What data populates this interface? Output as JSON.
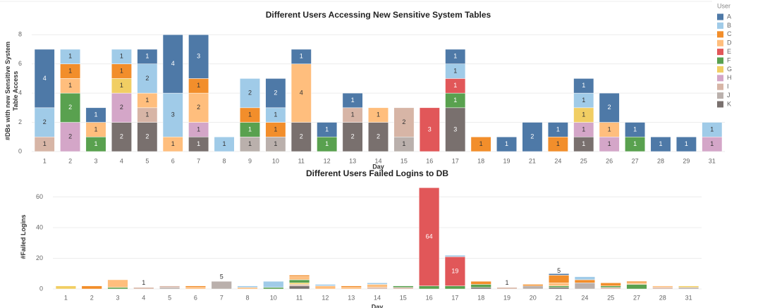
{
  "chart_data": [
    {
      "type": "stacked_bar",
      "title": "Different Users Accessing New Sensitive System Tables",
      "y_label": "#DBs with new Sensitive System Table Access",
      "x_label": "Day",
      "legend_title": "User",
      "legend": "right",
      "grid": true,
      "categories": [
        "1",
        "2",
        "3",
        "4",
        "5",
        "6",
        "7",
        "8",
        "9",
        "10",
        "11",
        "12",
        "13",
        "14",
        "15",
        "16",
        "17",
        "18",
        "19",
        "21",
        "24",
        "25",
        "26",
        "27",
        "28",
        "29",
        "31"
      ],
      "ylim": [
        0,
        8.3
      ],
      "yticks": [
        0,
        2,
        4,
        6,
        8
      ],
      "series": [
        {
          "name": "K",
          "color": "#79706e",
          "values": [
            null,
            null,
            null,
            2,
            2,
            null,
            1,
            null,
            null,
            null,
            2,
            null,
            2,
            2,
            null,
            null,
            3,
            null,
            null,
            null,
            null,
            1,
            null,
            null,
            null,
            null,
            null
          ]
        },
        {
          "name": "J",
          "color": "#bab0ac",
          "values": [
            null,
            null,
            null,
            null,
            null,
            null,
            null,
            null,
            1,
            1,
            null,
            null,
            null,
            null,
            1,
            null,
            null,
            null,
            null,
            null,
            null,
            null,
            null,
            null,
            null,
            null,
            null
          ]
        },
        {
          "name": "I",
          "color": "#d7b5a6",
          "values": [
            1,
            null,
            null,
            null,
            1,
            null,
            null,
            null,
            null,
            null,
            null,
            null,
            1,
            null,
            2,
            null,
            null,
            null,
            null,
            null,
            null,
            null,
            null,
            null,
            null,
            null,
            null
          ]
        },
        {
          "name": "H",
          "color": "#d4a6c8",
          "values": [
            null,
            2,
            null,
            2,
            null,
            null,
            1,
            null,
            null,
            null,
            null,
            null,
            null,
            null,
            null,
            null,
            null,
            null,
            null,
            null,
            null,
            1,
            1,
            null,
            null,
            null,
            1
          ]
        },
        {
          "name": "G",
          "color": "#f1ce63",
          "values": [
            null,
            null,
            null,
            1,
            null,
            null,
            null,
            null,
            null,
            null,
            null,
            null,
            null,
            null,
            null,
            null,
            null,
            null,
            null,
            null,
            null,
            1,
            null,
            null,
            null,
            null,
            null
          ]
        },
        {
          "name": "F",
          "color": "#59a14f",
          "values": [
            null,
            2,
            1,
            null,
            null,
            null,
            null,
            null,
            1,
            null,
            null,
            1,
            null,
            null,
            null,
            null,
            1,
            null,
            null,
            null,
            null,
            null,
            null,
            1,
            null,
            null,
            null
          ]
        },
        {
          "name": "E",
          "color": "#e15759",
          "values": [
            null,
            null,
            null,
            null,
            null,
            null,
            null,
            null,
            null,
            null,
            null,
            null,
            null,
            null,
            null,
            3,
            1,
            null,
            null,
            null,
            null,
            null,
            null,
            null,
            null,
            null,
            null
          ]
        },
        {
          "name": "D",
          "color": "#ffbe7d",
          "values": [
            null,
            1,
            1,
            null,
            1,
            1,
            2,
            null,
            null,
            null,
            4,
            null,
            null,
            1,
            null,
            null,
            null,
            null,
            null,
            null,
            null,
            null,
            1,
            null,
            null,
            null,
            null
          ]
        },
        {
          "name": "C",
          "color": "#f28e2b",
          "values": [
            null,
            1,
            null,
            1,
            null,
            null,
            1,
            null,
            1,
            1,
            null,
            null,
            null,
            null,
            null,
            null,
            null,
            1,
            null,
            null,
            1,
            null,
            null,
            null,
            null,
            null,
            null
          ]
        },
        {
          "name": "B",
          "color": "#a0cbe8",
          "values": [
            2,
            1,
            null,
            1,
            2,
            3,
            null,
            1,
            2,
            1,
            null,
            null,
            null,
            null,
            null,
            null,
            1,
            null,
            null,
            null,
            null,
            1,
            null,
            null,
            null,
            null,
            1
          ]
        },
        {
          "name": "A",
          "color": "#4e79a7",
          "values": [
            4,
            null,
            1,
            null,
            1,
            4,
            3,
            null,
            null,
            2,
            1,
            1,
            1,
            null,
            null,
            null,
            1,
            null,
            1,
            2,
            1,
            1,
            2,
            1,
            1,
            1,
            null
          ]
        }
      ]
    },
    {
      "type": "stacked_bar",
      "title": "Different Users Failed Logins to DB",
      "y_label": "#Failed Logins",
      "x_label": "Day",
      "grid": true,
      "categories": [
        "1",
        "2",
        "3",
        "4",
        "5",
        "6",
        "7",
        "8",
        "10",
        "11",
        "12",
        "13",
        "14",
        "15",
        "16",
        "17",
        "18",
        "19",
        "20",
        "21",
        "24",
        "25",
        "27",
        "28",
        "31"
      ],
      "ylim": [
        0,
        68
      ],
      "yticks": [
        0,
        20,
        40,
        60
      ],
      "series": [
        {
          "name": "K",
          "color": "#79706e",
          "values": [
            null,
            null,
            null,
            null,
            null,
            null,
            null,
            null,
            null,
            2,
            null,
            null,
            null,
            null,
            null,
            null,
            1,
            null,
            null,
            1,
            null,
            null,
            null,
            null,
            null
          ],
          "value_labels": [
            null,
            null,
            null,
            null,
            null,
            null,
            null,
            null,
            null,
            null,
            null,
            null,
            null,
            null,
            null,
            null,
            null,
            null,
            null,
            null,
            null,
            null,
            null,
            null,
            null
          ]
        },
        {
          "name": "J",
          "color": "#bab0ac",
          "values": [
            null,
            null,
            null,
            null,
            1,
            null,
            5,
            null,
            null,
            null,
            null,
            null,
            null,
            null,
            null,
            null,
            null,
            null,
            2,
            null,
            4,
            null,
            null,
            null,
            1
          ],
          "value_labels": [
            null,
            null,
            null,
            null,
            null,
            null,
            "5",
            null,
            null,
            null,
            null,
            null,
            null,
            null,
            null,
            null,
            null,
            null,
            null,
            null,
            null,
            null,
            null,
            null,
            null
          ]
        },
        {
          "name": "I",
          "color": "#d7b5a6",
          "values": [
            null,
            null,
            null,
            1,
            1,
            null,
            null,
            null,
            null,
            1,
            null,
            null,
            1,
            1,
            null,
            null,
            null,
            1,
            null,
            null,
            null,
            1,
            null,
            1,
            null
          ],
          "value_labels": [
            null,
            null,
            null,
            "1",
            null,
            null,
            null,
            null,
            null,
            null,
            null,
            null,
            null,
            null,
            null,
            null,
            null,
            "1",
            null,
            null,
            null,
            null,
            null,
            null,
            null
          ]
        },
        {
          "name": "G",
          "color": "#f1ce63",
          "values": [
            2,
            null,
            null,
            null,
            null,
            null,
            null,
            null,
            null,
            1,
            null,
            null,
            null,
            null,
            null,
            null,
            null,
            null,
            null,
            null,
            null,
            null,
            null,
            null,
            1
          ],
          "value_labels": [
            null,
            null,
            null,
            null,
            null,
            null,
            null,
            null,
            null,
            null,
            null,
            null,
            null,
            null,
            null,
            null,
            null,
            null,
            null,
            null,
            null,
            null,
            null,
            null,
            null
          ]
        },
        {
          "name": "F",
          "color": "#59a14f",
          "values": [
            null,
            null,
            1,
            null,
            null,
            null,
            null,
            null,
            1,
            2,
            null,
            null,
            null,
            1,
            2,
            2,
            2,
            null,
            null,
            1,
            null,
            1,
            3,
            null,
            null
          ],
          "value_labels": [
            null,
            null,
            null,
            null,
            null,
            null,
            null,
            null,
            null,
            null,
            null,
            null,
            null,
            null,
            null,
            null,
            null,
            null,
            null,
            null,
            null,
            null,
            null,
            null,
            null
          ]
        },
        {
          "name": "E",
          "color": "#e15759",
          "values": [
            null,
            null,
            null,
            null,
            null,
            null,
            null,
            null,
            null,
            null,
            null,
            null,
            null,
            null,
            64,
            19,
            null,
            null,
            null,
            null,
            null,
            null,
            null,
            null,
            null
          ],
          "value_labels": [
            null,
            null,
            null,
            null,
            null,
            null,
            null,
            null,
            null,
            null,
            null,
            null,
            null,
            null,
            "64",
            "19",
            null,
            null,
            null,
            null,
            null,
            null,
            null,
            null,
            null
          ]
        },
        {
          "name": "D",
          "color": "#ffbe7d",
          "values": [
            null,
            null,
            5,
            null,
            null,
            1,
            null,
            1,
            null,
            2,
            2,
            1,
            2,
            null,
            null,
            null,
            null,
            null,
            null,
            2,
            null,
            null,
            1,
            1,
            null
          ],
          "value_labels": [
            null,
            null,
            null,
            null,
            null,
            null,
            null,
            null,
            null,
            null,
            null,
            null,
            null,
            null,
            null,
            null,
            null,
            null,
            null,
            null,
            null,
            null,
            null,
            null,
            null
          ]
        },
        {
          "name": "C",
          "color": "#f28e2b",
          "values": [
            null,
            2,
            null,
            null,
            null,
            1,
            null,
            null,
            null,
            1,
            null,
            1,
            null,
            null,
            null,
            null,
            2,
            null,
            1,
            5,
            2,
            2,
            1,
            null,
            null
          ],
          "value_labels": [
            null,
            null,
            null,
            null,
            null,
            null,
            null,
            null,
            null,
            null,
            null,
            null,
            null,
            null,
            null,
            null,
            null,
            null,
            null,
            "5",
            null,
            null,
            null,
            null,
            null
          ]
        },
        {
          "name": "B",
          "color": "#a0cbe8",
          "values": [
            null,
            null,
            null,
            null,
            null,
            null,
            null,
            1,
            4,
            null,
            1,
            null,
            1,
            null,
            null,
            1,
            null,
            null,
            null,
            null,
            2,
            null,
            null,
            null,
            null
          ],
          "value_labels": [
            null,
            null,
            null,
            null,
            null,
            null,
            null,
            null,
            null,
            null,
            null,
            null,
            null,
            null,
            null,
            null,
            null,
            null,
            null,
            null,
            null,
            null,
            null,
            null,
            null
          ]
        },
        {
          "name": "A",
          "color": "#4e79a7",
          "values": [
            null,
            null,
            null,
            null,
            null,
            null,
            null,
            null,
            null,
            null,
            null,
            null,
            null,
            null,
            null,
            null,
            null,
            null,
            null,
            1,
            null,
            null,
            null,
            null,
            null
          ],
          "value_labels": [
            null,
            null,
            null,
            null,
            null,
            null,
            null,
            null,
            null,
            null,
            null,
            null,
            null,
            null,
            null,
            null,
            null,
            null,
            null,
            null,
            null,
            null,
            null,
            null,
            null
          ]
        }
      ]
    }
  ]
}
